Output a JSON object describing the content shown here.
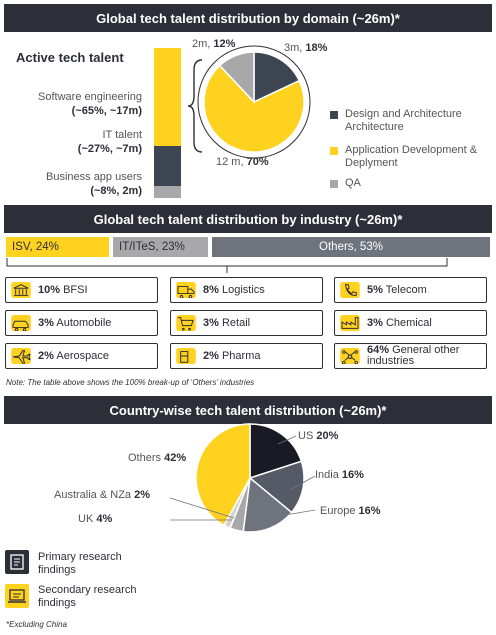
{
  "headers": {
    "domain": "Global tech talent distribution by domain (~26m)*",
    "industry": "Global tech talent distribution by industry (~26m)*",
    "country": "Country-wise tech talent distribution (~26m)*"
  },
  "active": {
    "title": "Active tech talent",
    "software": {
      "name": "Software engineering",
      "value": "(~65%, ~17m)"
    },
    "it": {
      "name": "IT talent",
      "value": "(~27%, ~7m)"
    },
    "business": {
      "name": "Business app users",
      "value": "(~8%, 2m)"
    }
  },
  "domain_labels": {
    "qa_top": "2m, ",
    "qa_pct": "12%",
    "design_top": "3m, ",
    "design_pct": "18%",
    "app_bottom": "12 m, ",
    "app_pct": "70%"
  },
  "domain_legend": [
    {
      "label": "Design and Architecture Architecture",
      "color": "#3d4452"
    },
    {
      "label": "Application Development & Deplyment",
      "color": "#ffd21f"
    },
    {
      "label": "QA",
      "color": "#a8a8aa"
    }
  ],
  "industry_segments": {
    "isv": "ISV, 24%",
    "ites": "IT/ITeS, 23%",
    "others": "Others, 53%"
  },
  "industry_cards": [
    {
      "pct": "10%",
      "name": "BFSI",
      "icon": "bank-icon"
    },
    {
      "pct": "8%",
      "name": "Logistics",
      "icon": "truck-icon"
    },
    {
      "pct": "5%",
      "name": "Telecom",
      "icon": "phone-icon"
    },
    {
      "pct": "3%",
      "name": "Automobile",
      "icon": "car-icon"
    },
    {
      "pct": "3%",
      "name": "Retail",
      "icon": "cart-icon"
    },
    {
      "pct": "3%",
      "name": "Chemical",
      "icon": "factory-icon"
    },
    {
      "pct": "2%",
      "name": "Aerospace",
      "icon": "plane-icon"
    },
    {
      "pct": "2%",
      "name": "Pharma",
      "icon": "pill-icon"
    },
    {
      "pct": "64%",
      "name": "General other industries",
      "icon": "network-icon"
    }
  ],
  "industry_note": "Note: The table above shows the 100% break-up of ‘Others’ industries",
  "country_labels": {
    "us": "US ",
    "us_pct": "20%",
    "india": "India ",
    "india_pct": "16%",
    "europe": "Europe ",
    "europe_pct": "16%",
    "uk": "UK ",
    "uk_pct": "4%",
    "aus": "Australia & NZa ",
    "aus_pct": "2%",
    "others": "Others ",
    "others_pct": "42%"
  },
  "footer": {
    "primary": "Primary research findings",
    "secondary": "Secondary research findings",
    "note": "*Excluding China"
  },
  "chart_data": [
    {
      "type": "bar",
      "categories": [
        "Software engineering",
        "IT talent",
        "Business app users"
      ],
      "values": [
        65,
        27,
        8
      ],
      "stacked": true
    },
    {
      "type": "pie",
      "title": "Global tech talent distribution by domain (~26m)*",
      "labels": [
        "Design and Architecture Architecture",
        "Application Development & Deplyment",
        "QA"
      ],
      "values": [
        18,
        70,
        12
      ],
      "colors": [
        "#3d4452",
        "#ffd21f",
        "#a8a8aa"
      ]
    },
    {
      "type": "bar",
      "title": "Global tech talent distribution by industry (~26m)*",
      "categories": [
        "ISV",
        "IT/ITeS",
        "Others"
      ],
      "values": [
        24,
        23,
        53
      ]
    },
    {
      "type": "pie",
      "title": "Country-wise tech talent distribution (~26m)*",
      "labels": [
        "US",
        "India",
        "Europe",
        "UK",
        "Australia & NZa",
        "Others"
      ],
      "values": [
        20,
        16,
        16,
        4,
        2,
        42
      ],
      "colors": [
        "#1a1a24",
        "#555a66",
        "#6e737d",
        "#a8a8aa",
        "#d4d4d6",
        "#ffd21f"
      ]
    }
  ]
}
